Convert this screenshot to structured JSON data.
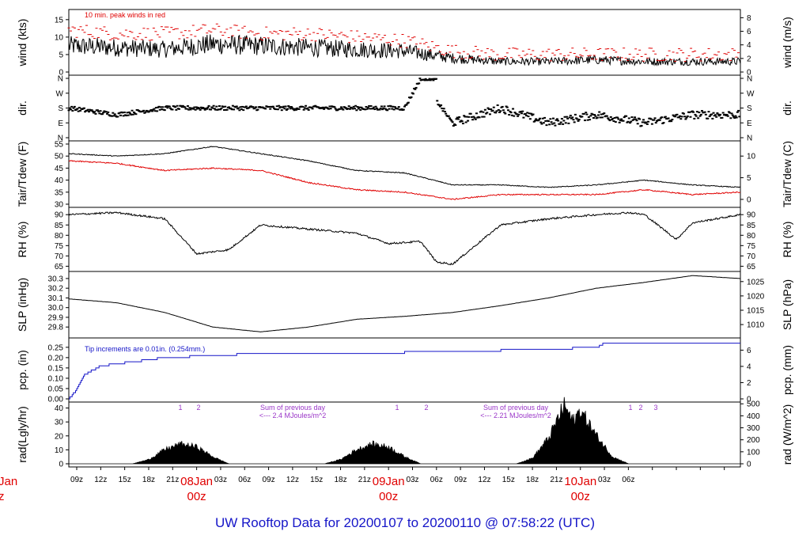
{
  "title": "UW Rooftop Data for 20200107  to  20200110 @ 07:58:22  (UTC)",
  "x_axis": {
    "ticks": [
      "09z",
      "12z",
      "15z",
      "18z",
      "21z",
      "03z",
      "06z",
      "09z",
      "12z",
      "15z",
      "18z",
      "21z",
      "03z",
      "06z",
      "09z",
      "12z",
      "15z",
      "18z",
      "21z",
      "03z",
      "06z"
    ],
    "day_markers": [
      {
        "label": "08Jan",
        "sub": "00z"
      },
      {
        "label": "09Jan",
        "sub": "00z"
      },
      {
        "label": "10Jan",
        "sub": "00z"
      }
    ],
    "left_cut": {
      "label": "Jan",
      "sub": "z"
    }
  },
  "panels": {
    "wind": {
      "ylabel_left": "wind (kts)",
      "ylabel_right": "wind (m/s)",
      "left_ticks": [
        "0",
        "5",
        "10",
        "15"
      ],
      "right_ticks": [
        "0",
        "2",
        "4",
        "6",
        "8"
      ],
      "note": "10 min. peak winds in red"
    },
    "dir": {
      "ylabel_left": "dir.",
      "ylabel_right": "dir.",
      "left_ticks": [
        "N",
        "E",
        "S",
        "W",
        "N"
      ],
      "right_ticks": [
        "N",
        "E",
        "S",
        "W",
        "N"
      ]
    },
    "temp": {
      "ylabel_left": "Tair/Tdew (F)",
      "ylabel_right": "Tair/Tdew (C)",
      "left_ticks": [
        "30",
        "35",
        "40",
        "45",
        "50",
        "55"
      ],
      "right_ticks": [
        "0",
        "5",
        "10"
      ]
    },
    "rh": {
      "ylabel_left": "RH (%)",
      "ylabel_right": "RH (%)",
      "left_ticks": [
        "65",
        "70",
        "75",
        "80",
        "85",
        "90"
      ],
      "right_ticks": [
        "65",
        "70",
        "75",
        "80",
        "85",
        "90"
      ]
    },
    "slp": {
      "ylabel_left": "SLP (inHg)",
      "ylabel_right": "SLP (hPa)",
      "left_ticks": [
        "29.8",
        "29.9",
        "30.0",
        "30.1",
        "30.2",
        "30.3"
      ],
      "right_ticks": [
        "1010",
        "1015",
        "1020",
        "1025"
      ]
    },
    "pcp": {
      "ylabel_left": "pcp. (in)",
      "ylabel_right": "pcp. (mm)",
      "left_ticks": [
        "0.00",
        "0.05",
        "0.10",
        "0.15",
        "0.20",
        "0.25"
      ],
      "right_ticks": [
        "0",
        "2",
        "4",
        "6"
      ],
      "note": "Tip increments are 0.01in. (0.254mm.)"
    },
    "rad": {
      "ylabel_left": "rad(Lgly/hr)",
      "ylabel_right": "rad (W/m^2)",
      "left_ticks": [
        "0",
        "10",
        "20",
        "30",
        "40"
      ],
      "right_ticks": [
        "0",
        "100",
        "200",
        "300",
        "400",
        "500"
      ],
      "sum_notes": [
        {
          "line1": "Sum of previous day",
          "line2": "<--- 2.4 MJoules/m^2"
        },
        {
          "line1": "Sum of previous day",
          "line2": "<--- 2.21 MJoules/m^2"
        }
      ],
      "markers": [
        "1",
        "2",
        "1",
        "2",
        "1",
        "2",
        "3"
      ]
    }
  },
  "colors": {
    "title": "#1515c8",
    "peak": "#e00000",
    "tdew": "#e00000",
    "pcp": "#1515c8",
    "note": "#9a35c8"
  },
  "chart_data": [
    {
      "type": "line",
      "title": "",
      "ylabel": "wind (kts)",
      "ylim": [
        0,
        17
      ],
      "x_hours": [
        0,
        6,
        12,
        18,
        24,
        30,
        36,
        42,
        48,
        54,
        60,
        66,
        72,
        78,
        84
      ],
      "series": [
        {
          "name": "wind",
          "values": [
            7.5,
            7,
            6.5,
            8,
            7.5,
            7,
            6.5,
            6,
            4,
            3,
            3,
            3.5,
            3,
            3,
            3
          ]
        },
        {
          "name": "10 min. peak winds",
          "values": [
            12,
            11,
            11,
            12,
            11,
            11,
            10,
            9,
            6,
            5,
            5,
            5,
            5,
            5,
            5
          ]
        }
      ]
    },
    {
      "type": "scatter",
      "ylabel": "dir.",
      "categories_y": [
        "N",
        "E",
        "S",
        "W",
        "N"
      ],
      "x_hours": [
        0,
        6,
        12,
        18,
        24,
        30,
        36,
        42,
        44,
        48,
        54,
        60,
        66,
        72,
        78,
        84
      ],
      "values": [
        "S",
        "SE",
        "S",
        "S",
        "S",
        "S",
        "S",
        "S",
        "N",
        "E",
        "S",
        "E",
        "SE",
        "E",
        "SE",
        "SE"
      ]
    },
    {
      "type": "line",
      "ylabel": "Tair/Tdew (F)",
      "ylim": [
        30,
        55
      ],
      "x_hours": [
        0,
        6,
        12,
        18,
        24,
        30,
        36,
        42,
        48,
        54,
        60,
        66,
        72,
        78,
        84
      ],
      "series": [
        {
          "name": "Tair",
          "values": [
            51,
            50,
            51,
            54,
            51,
            48,
            44,
            43,
            38,
            38,
            37,
            38,
            40,
            38,
            37
          ]
        },
        {
          "name": "Tdew",
          "values": [
            48,
            47,
            44,
            45,
            44,
            39,
            36,
            35,
            32,
            34,
            34,
            34,
            36,
            34,
            35
          ]
        }
      ]
    },
    {
      "type": "line",
      "ylabel": "RH (%)",
      "ylim": [
        64,
        92
      ],
      "x_hours": [
        0,
        6,
        12,
        16,
        20,
        24,
        30,
        36,
        40,
        44,
        46,
        48,
        54,
        60,
        66,
        70,
        72,
        76,
        78,
        84
      ],
      "series": [
        {
          "name": "RH",
          "values": [
            90,
            91,
            88,
            71,
            73,
            85,
            83,
            81,
            76,
            77,
            67,
            66,
            85,
            88,
            90,
            91,
            90,
            78,
            86,
            90
          ]
        }
      ]
    },
    {
      "type": "line",
      "ylabel": "SLP (inHg)",
      "ylim": [
        29.72,
        30.34
      ],
      "x_hours": [
        0,
        6,
        12,
        18,
        24,
        30,
        36,
        42,
        48,
        54,
        60,
        66,
        72,
        78,
        84
      ],
      "series": [
        {
          "name": "SLP",
          "values": [
            30.09,
            30.05,
            29.95,
            29.8,
            29.75,
            29.8,
            29.88,
            29.91,
            29.95,
            30.02,
            30.1,
            30.2,
            30.26,
            30.33,
            30.3
          ]
        }
      ]
    },
    {
      "type": "line",
      "ylabel": "pcp. (in)",
      "ylim": [
        0,
        0.28
      ],
      "x_hours": [
        0,
        1,
        2,
        4,
        6,
        8,
        10,
        12,
        18,
        24,
        36,
        48,
        60,
        66,
        67,
        84
      ],
      "series": [
        {
          "name": "pcp",
          "values": [
            0,
            0.05,
            0.12,
            0.16,
            0.17,
            0.18,
            0.19,
            0.2,
            0.21,
            0.22,
            0.22,
            0.23,
            0.24,
            0.25,
            0.27,
            0.27
          ]
        }
      ]
    },
    {
      "type": "area",
      "ylabel": "rad(Lgly/hr)",
      "ylim": [
        0,
        42
      ],
      "x_hours": [
        0,
        8,
        10,
        12,
        14,
        16,
        18,
        20,
        32,
        34,
        36,
        38,
        40,
        42,
        44,
        56,
        58,
        60,
        62,
        63,
        64,
        66,
        68,
        70,
        84
      ],
      "series": [
        {
          "name": "rad",
          "values": [
            0,
            0,
            3,
            10,
            14,
            12,
            5,
            0,
            0,
            3,
            10,
            14,
            12,
            5,
            0,
            0,
            4,
            18,
            42,
            30,
            38,
            20,
            5,
            0,
            0
          ]
        }
      ]
    }
  ]
}
